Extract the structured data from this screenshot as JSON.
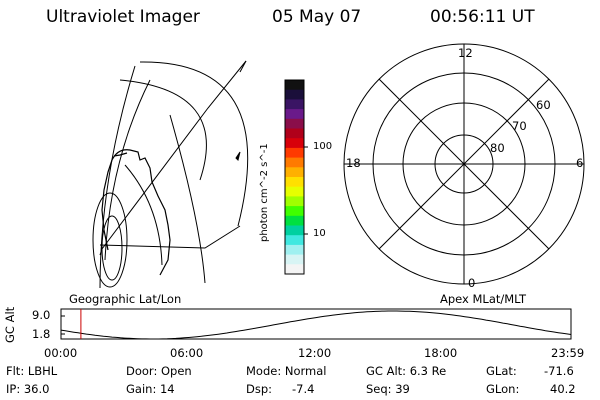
{
  "header": {
    "title": "Ultraviolet Imager",
    "date": "05 May 07",
    "time": "00:56:11 UT"
  },
  "colorbar": {
    "label": "photon cm^-2 s^-1",
    "tick_labels": [
      "100",
      "10"
    ],
    "colors_top_to_bottom": [
      "#111111",
      "#1a0f3a",
      "#3a1464",
      "#6a1a8a",
      "#8a0e4a",
      "#b0001a",
      "#d8000a",
      "#ff3a00",
      "#ff7a00",
      "#ffb000",
      "#ffe000",
      "#e6ff00",
      "#a0ff00",
      "#40ff00",
      "#00e040",
      "#00d0a0",
      "#40e8e0",
      "#a0f0f0",
      "#d8f4f4",
      "#f4f4f4"
    ]
  },
  "polar_plot": {
    "mlt_labels": [
      "12",
      "18",
      "6",
      "0"
    ],
    "lat_labels": [
      "60",
      "70",
      "80"
    ]
  },
  "map_labels": {
    "left": "Geographic Lat/Lon",
    "right": "Apex MLat/MLT"
  },
  "altitude_panel": {
    "ylabel": "GC Alt",
    "y_ticks": [
      "9.0",
      "1.8"
    ],
    "x_ticks": [
      "00:00",
      "06:00",
      "12:00",
      "18:00",
      "23:59"
    ],
    "marker_time_fraction": 0.039,
    "marker_color": "#cc0000"
  },
  "footer": {
    "flt": "Flt: LBHL",
    "ip": "IP: 36.0",
    "door": "Door: Open",
    "gain": "Gain: 14",
    "mode": "Mode: Normal",
    "dsp_label": "Dsp:",
    "dsp_value": "-7.4",
    "gc_alt": "GC Alt: 6.3 Re",
    "seq": "Seq: 39",
    "glat_label": "GLat:",
    "glat_value": "-71.6",
    "glon_label": "GLon:",
    "glon_value": "40.2"
  }
}
